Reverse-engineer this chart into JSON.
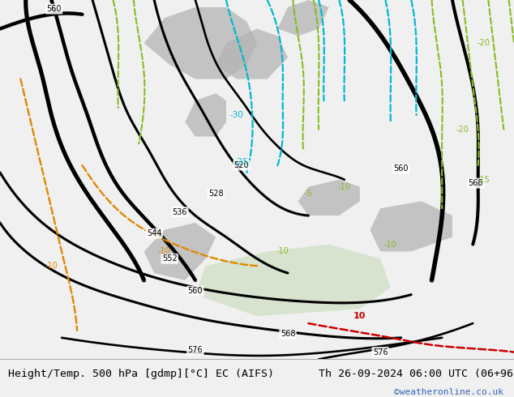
{
  "title_left": "Height/Temp. 500 hPa [gdmp][°C] EC (AIFS)",
  "title_right": "Th 26-09-2024 06:00 UTC (06+96)",
  "credit": "©weatheronline.co.uk",
  "footer_bg": "#f0f0f0",
  "map_bg": "#d8eecc",
  "gray_land": "#b4b4b4",
  "title_font_size": 9.5,
  "credit_font_size": 8,
  "credit_color": "#3366bb",
  "fig_width": 6.34,
  "fig_height": 4.9,
  "black_lw": 2.2,
  "bold_lw": 3.2
}
